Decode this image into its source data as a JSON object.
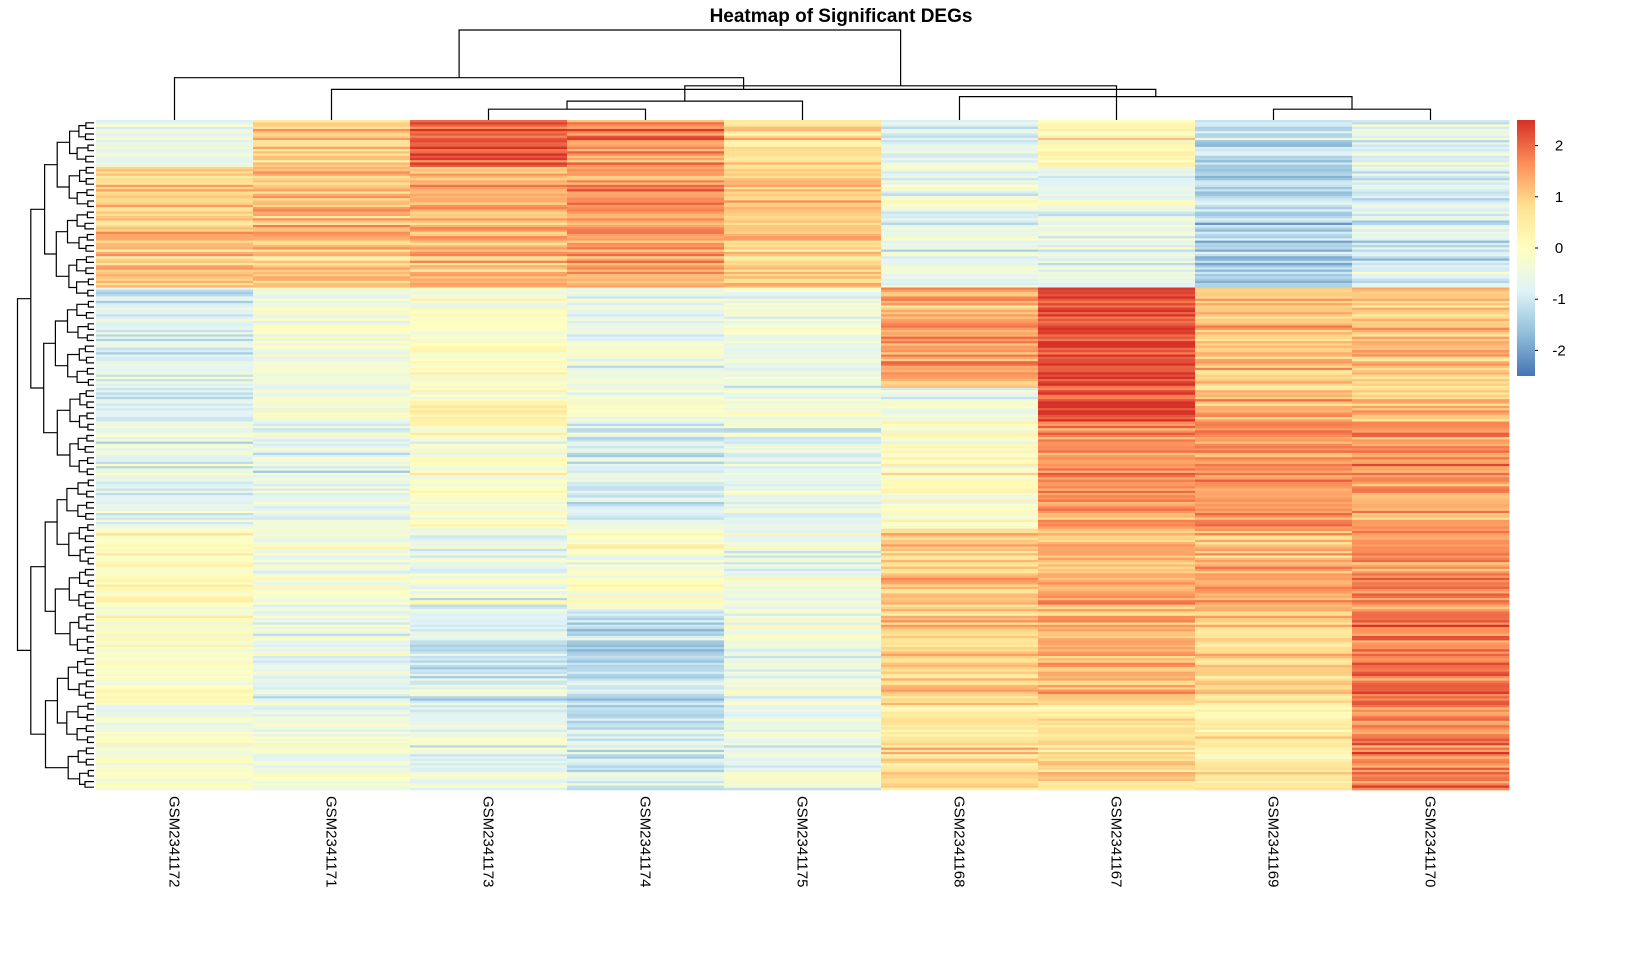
{
  "chart_data": {
    "type": "heatmap",
    "title": "Heatmap of Significant DEGs",
    "columns": [
      "GSM2341172",
      "GSM2341171",
      "GSM2341173",
      "GSM2341174",
      "GSM2341175",
      "GSM2341168",
      "GSM2341167",
      "GSM2341169",
      "GSM2341170"
    ],
    "color_scale": {
      "min": -2.5,
      "max": 2.5,
      "ticks": [
        2,
        1,
        0,
        -1,
        -2
      ],
      "colors": [
        "#4575b4",
        "#91bfdb",
        "#e0f3f8",
        "#ffffbf",
        "#fee090",
        "#fc8d59",
        "#d73027"
      ]
    },
    "row_clusters": [
      {
        "fraction": 0.07,
        "values": [
          -0.6,
          0.9,
          2.1,
          1.6,
          0.7,
          -0.8,
          0.2,
          -1.2,
          -0.7
        ]
      },
      {
        "fraction": 0.18,
        "values": [
          1.0,
          1.1,
          1.2,
          1.4,
          1.0,
          -0.6,
          -0.6,
          -1.4,
          -0.9
        ]
      },
      {
        "fraction": 0.15,
        "values": [
          -0.8,
          -0.4,
          -0.1,
          -0.5,
          -0.4,
          1.4,
          2.3,
          1.1,
          1.1
        ]
      },
      {
        "fraction": 0.05,
        "values": [
          -1.0,
          -0.4,
          0.1,
          -0.4,
          -0.4,
          -0.4,
          2.3,
          1.2,
          1.1
        ]
      },
      {
        "fraction": 0.16,
        "values": [
          -0.6,
          -0.6,
          -0.1,
          -0.8,
          -0.6,
          0.0,
          1.6,
          1.6,
          1.6
        ]
      },
      {
        "fraction": 0.12,
        "values": [
          0.0,
          -0.4,
          -0.6,
          -0.2,
          -0.6,
          1.0,
          1.3,
          1.3,
          1.6
        ]
      },
      {
        "fraction": 0.14,
        "values": [
          0.0,
          -0.6,
          -0.8,
          -1.2,
          -0.4,
          1.0,
          1.3,
          1.0,
          1.9
        ]
      },
      {
        "fraction": 0.13,
        "values": [
          -0.2,
          -0.3,
          -0.6,
          -0.9,
          -0.5,
          0.8,
          0.8,
          0.5,
          1.8
        ]
      }
    ],
    "column_dendrogram": [
      {
        "a": 2,
        "b": 3,
        "h": 0.12
      },
      {
        "a": 7,
        "b": 8,
        "h": 0.12
      },
      {
        "a": 4,
        "b": 9,
        "h": 0.21
      },
      {
        "a": 5,
        "b": 10,
        "h": 0.26
      },
      {
        "a": 1,
        "b": 12,
        "h": 0.34
      },
      {
        "a": 6,
        "b": 11,
        "h": 0.38
      },
      {
        "a": 0,
        "b": 13,
        "h": 0.47
      },
      {
        "a": 14,
        "b": 15,
        "h": 1.0
      }
    ]
  }
}
